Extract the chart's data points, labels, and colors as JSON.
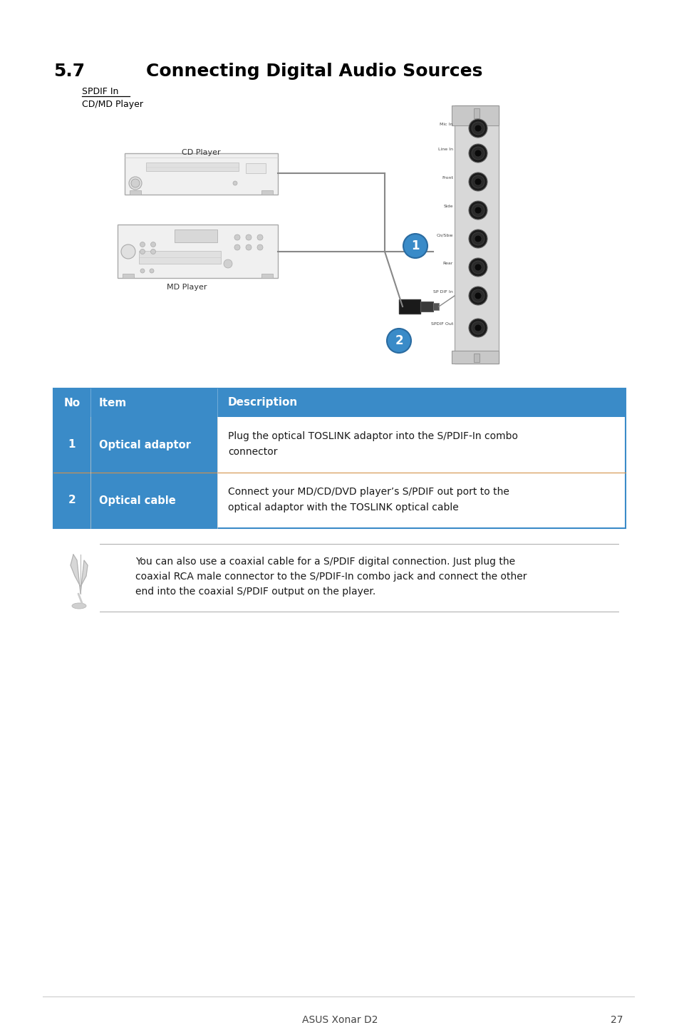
{
  "title_number": "5.7",
  "title_text": "Connecting Digital Audio Sources",
  "subtitle_line1": "SPDIF In",
  "subtitle_line2": "CD/MD Player",
  "table_header": [
    "No",
    "Item",
    "Description"
  ],
  "table_header_bg": "#3a8bc8",
  "table_header_color": "#ffffff",
  "table_rows": [
    {
      "no": "1",
      "item": "Optical adaptor",
      "desc1": "Plug the optical TOSLINK adaptor into the S/PDIF-In combo",
      "desc2": "connector"
    },
    {
      "no": "2",
      "item": "Optical cable",
      "desc1": "Connect your MD/CD/DVD player’s S/PDIF out port to the",
      "desc2": "optical adaptor with the TOSLINK optical cable"
    }
  ],
  "note_text_lines": [
    "You can also use a coaxial cable for a S/PDIF digital connection. Just plug the",
    "coaxial RCA male connector to the S/PDIF-In combo jack and connect the other",
    "end into the coaxial S/PDIF output on the player."
  ],
  "footer_text": "ASUS Xonar D2",
  "footer_page": "27",
  "bg_color": "#ffffff",
  "card_labels": [
    "Mic In",
    "Line In",
    "Front",
    "Side",
    "Cn/Sbw",
    "Rear",
    "SP DIF In",
    "SPDIF Out"
  ]
}
